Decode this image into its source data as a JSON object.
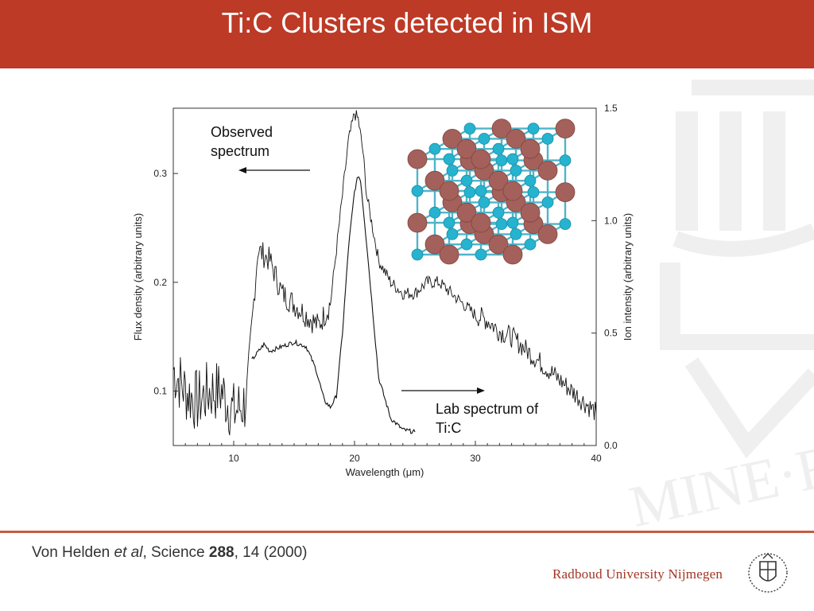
{
  "slide": {
    "title": "Ti:C Clusters detected in ISM",
    "citation": {
      "authors": "Von Helden ",
      "etal": "et al",
      "journal": ", Science ",
      "volume": "288",
      "pages": ", 14 (2000)"
    },
    "institution": "Radboud University Nijmegen",
    "watermark_text": "MINE·F"
  },
  "colors": {
    "header": "#bc3a26",
    "accent_line": "#c65a45",
    "institution_text": "#a33424",
    "atom_carbon": "#25b3cf",
    "atom_titanium": "#a4605a"
  },
  "chart_data": {
    "type": "line",
    "xlabel": "Wavelength (μm)",
    "ylabel_left": "Flux density (arbitrary units)",
    "ylabel_right": "Ion intensity (arbitrary units)",
    "xlim": [
      5,
      40
    ],
    "ylim_left": [
      0.05,
      0.36
    ],
    "ylim_right": [
      0,
      1.5
    ],
    "x_ticks": [
      "10",
      "20",
      "30",
      "40"
    ],
    "y_ticks_left": [
      "0.1",
      "0.2",
      "0.3"
    ],
    "y_ticks_right": [
      "0.0",
      "0.5",
      "1.0",
      "1.5"
    ],
    "annotations": {
      "observed_line1": "Observed",
      "observed_line2": "spectrum",
      "lab_line1": "Lab spectrum of",
      "lab_line2": "Ti:C"
    },
    "series": [
      {
        "name": "Observed spectrum",
        "axis": "left",
        "noise": 0.006,
        "x": [
          5.0,
          6.0,
          7.0,
          8.0,
          9.0,
          10.0,
          11.0,
          11.5,
          12.0,
          13.0,
          14.0,
          15.0,
          16.0,
          17.0,
          18.0,
          18.5,
          19.0,
          19.5,
          20.0,
          20.3,
          20.7,
          21.0,
          22.0,
          23.0,
          24.0,
          25.0,
          26.0,
          27.0,
          28.0,
          29.0,
          30.0,
          31.0,
          32.0,
          33.0,
          34.0,
          35.0,
          36.0,
          37.0,
          38.0,
          39.0,
          40.0
        ],
        "y": [
          0.12,
          0.1,
          0.09,
          0.1,
          0.1,
          0.08,
          0.09,
          0.16,
          0.23,
          0.22,
          0.19,
          0.18,
          0.17,
          0.16,
          0.18,
          0.23,
          0.28,
          0.33,
          0.355,
          0.35,
          0.32,
          0.28,
          0.22,
          0.2,
          0.19,
          0.19,
          0.2,
          0.2,
          0.19,
          0.18,
          0.17,
          0.165,
          0.155,
          0.15,
          0.14,
          0.13,
          0.12,
          0.11,
          0.1,
          0.09,
          0.08
        ]
      },
      {
        "name": "Lab spectrum of Ti:C",
        "axis": "right",
        "noise": 0.01,
        "x": [
          11.5,
          12.5,
          13.0,
          14.0,
          15.0,
          16.0,
          16.8,
          17.5,
          18.0,
          18.5,
          19.0,
          19.5,
          20.0,
          20.3,
          20.5,
          21.0,
          21.5,
          22.0,
          23.0,
          24.0,
          25.0
        ],
        "y": [
          0.38,
          0.45,
          0.42,
          0.44,
          0.46,
          0.44,
          0.34,
          0.2,
          0.17,
          0.22,
          0.5,
          0.88,
          1.13,
          1.2,
          1.18,
          0.9,
          0.6,
          0.3,
          0.12,
          0.07,
          0.06
        ]
      }
    ]
  }
}
